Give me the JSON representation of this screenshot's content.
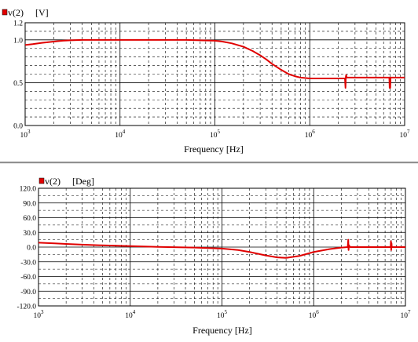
{
  "chart_data": [
    {
      "type": "line",
      "legend": {
        "swatch_color": "#e00000",
        "signal": "v(2)",
        "unit": "[V]"
      },
      "xlabel": "Frequency [Hz]",
      "xscale": "log",
      "xlim": [
        1000,
        10000000
      ],
      "x_tick_labels": [
        {
          "base": "10",
          "exp": "3"
        },
        {
          "base": "10",
          "exp": "4"
        },
        {
          "base": "10",
          "exp": "5"
        },
        {
          "base": "10",
          "exp": "6"
        },
        {
          "base": "10",
          "exp": "7"
        }
      ],
      "ylim": [
        0,
        1.2
      ],
      "y_ticks": [
        0,
        0.5,
        1.0,
        1.2
      ],
      "y_tick_labels": [
        "0.0",
        "0.5",
        "1.0",
        "1.2"
      ],
      "y_minor_step": 0.1,
      "grid": true,
      "line_color": "#e00000",
      "series": [
        {
          "x": [
            1000,
            1200,
            1500,
            2000,
            2500,
            3000,
            4000,
            5000,
            7000,
            10000,
            20000,
            50000,
            100000,
            120000,
            150000,
            200000,
            250000,
            300000,
            350000,
            400000,
            500000,
            600000,
            700000,
            800000,
            1000000,
            1200000,
            1500000,
            2000000,
            2350000,
            2380000,
            2400000,
            2420000,
            2450000,
            2500000,
            3000000,
            4000000,
            5000000,
            6000000,
            6900000,
            6950000,
            7000000,
            7050000,
            7100000,
            8000000,
            9000000,
            10000000
          ],
          "y": [
            0.94,
            0.95,
            0.965,
            0.98,
            0.99,
            0.995,
            1.0,
            1.0,
            1.0,
            1.0,
            1.0,
            1.0,
            0.99,
            0.98,
            0.96,
            0.92,
            0.87,
            0.82,
            0.77,
            0.72,
            0.65,
            0.6,
            0.575,
            0.56,
            0.55,
            0.55,
            0.55,
            0.55,
            0.55,
            0.44,
            0.57,
            0.59,
            0.56,
            0.56,
            0.56,
            0.56,
            0.56,
            0.56,
            0.56,
            0.44,
            0.56,
            0.44,
            0.56,
            0.56,
            0.56,
            0.56
          ]
        }
      ]
    },
    {
      "type": "line",
      "legend": {
        "swatch_color": "#e00000",
        "signal": "v(2)",
        "unit": "[Deg]"
      },
      "xlabel": "Frequency [Hz]",
      "xscale": "log",
      "xlim": [
        1000,
        10000000
      ],
      "x_tick_labels": [
        {
          "base": "10",
          "exp": "3"
        },
        {
          "base": "10",
          "exp": "4"
        },
        {
          "base": "10",
          "exp": "5"
        },
        {
          "base": "10",
          "exp": "6"
        },
        {
          "base": "10",
          "exp": "7"
        }
      ],
      "ylim": [
        -120,
        120
      ],
      "y_ticks": [
        -120,
        -90,
        -60,
        -30,
        0,
        30,
        60,
        90,
        120
      ],
      "y_tick_labels": [
        "-120.0",
        "-90.0",
        "-60.0",
        "-30.0",
        "0.0",
        "30.0",
        "60.0",
        "90.0",
        "120.0"
      ],
      "y_minor_step": 15,
      "grid": true,
      "line_color": "#e00000",
      "series": [
        {
          "x": [
            1000,
            1500,
            2000,
            3000,
            5000,
            10000,
            20000,
            50000,
            100000,
            150000,
            200000,
            300000,
            400000,
            500000,
            700000,
            1000000,
            1500000,
            2000000,
            2350000,
            2380000,
            2400000,
            2420000,
            2450000,
            2500000,
            3000000,
            5000000,
            6900000,
            6950000,
            7000000,
            7050000,
            7100000,
            8000000,
            10000000
          ],
          "y": [
            9,
            7.5,
            6.5,
            5,
            3.5,
            2,
            0.5,
            -1,
            -3,
            -6,
            -10,
            -17,
            -21,
            -22,
            -18,
            -10,
            -4,
            -1,
            0,
            15,
            -6,
            4,
            2,
            0,
            0,
            0,
            0,
            12,
            -6,
            8,
            0,
            0,
            0
          ]
        }
      ]
    }
  ]
}
